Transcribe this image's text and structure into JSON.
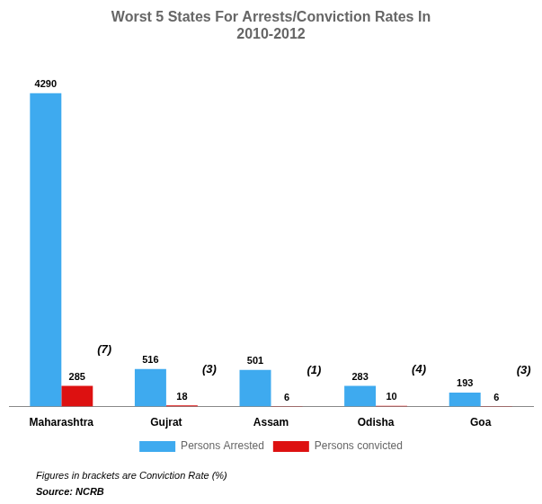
{
  "chart_data": {
    "type": "bar",
    "title": "Worst 5 States For Arrests/Conviction Rates In\n2010-2012",
    "categories": [
      "Maharashtra",
      "Gujrat",
      "Assam",
      "Odisha",
      "Goa"
    ],
    "series": [
      {
        "name": "Persons Arrested",
        "color": "#3eaaef",
        "values": [
          4290,
          516,
          501,
          283,
          193
        ]
      },
      {
        "name": "Persons convicted",
        "color": "#dd1111",
        "values": [
          285,
          18,
          6,
          10,
          6
        ]
      }
    ],
    "conviction_rate": {
      "values": [
        7,
        3,
        1,
        4,
        3
      ],
      "value_labels": [
        "(7)",
        "(3)",
        "(1)",
        "(4)",
        "(3)"
      ]
    },
    "annotations": [
      "Figures in brackets are Conviction Rate (%)",
      "Source: NCRB"
    ],
    "ylim": [
      0,
      4800
    ],
    "grid": false,
    "legend": "bottom",
    "data_labels": true,
    "tick_labels": "x"
  }
}
